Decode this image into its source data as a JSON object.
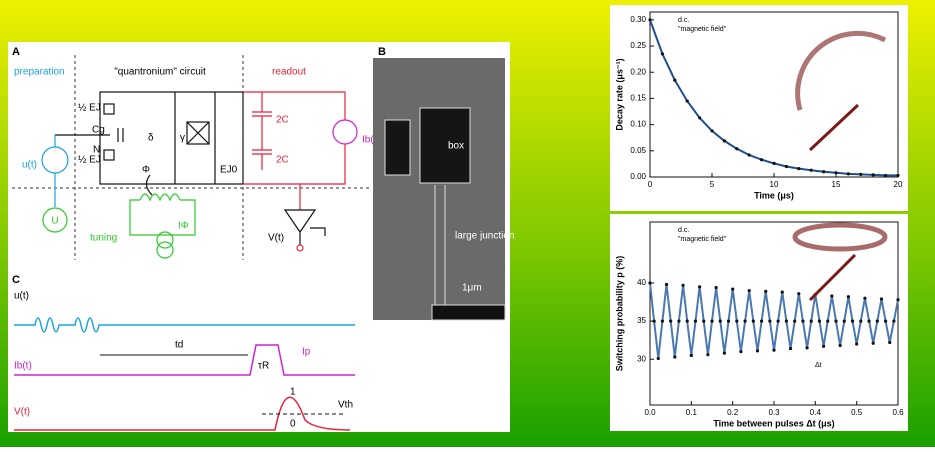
{
  "figure": {
    "panel_a": {
      "label": "A",
      "preparation": "preparation",
      "circuit": "\"quantronium\" circuit",
      "readout": "readout",
      "cg": "Cg",
      "n": "N",
      "ej_top": "½ EJ",
      "ej_bottom": "½ EJ",
      "delta": "δ",
      "gamma": "γ",
      "phi": "Φ",
      "ej0": "EJ0",
      "cap_top": "2C",
      "cap_bottom": "2C",
      "ib": "Ib(t)",
      "u": "u(t)",
      "u_source": "U",
      "tuning": "tuning",
      "iphi": "IΦ",
      "v": "V(t)"
    },
    "panel_b": {
      "label": "B",
      "box": "box",
      "junction": "large junction",
      "scale": "1μm"
    },
    "panel_c": {
      "label": "C",
      "u": "u(t)",
      "ib": "Ib(t)",
      "v": "V(t)",
      "td": "td",
      "tau": "τR",
      "ip": "Ip",
      "vth": "Vth",
      "one": "1",
      "zero": "0"
    }
  },
  "chart_data": [
    {
      "type": "line",
      "x_label": "Time (μs)",
      "y_label": "Decay rate (μs⁻¹)",
      "annotation": "d.c.",
      "annotation2": "\"magnetic field\"",
      "x": [
        0,
        1,
        2,
        3,
        4,
        5,
        6,
        7,
        8,
        9,
        10,
        11,
        12,
        13,
        14,
        15,
        16,
        17,
        18,
        19,
        20
      ],
      "series": [
        {
          "color": "#1f4f8f",
          "values": [
            0.3,
            0.235,
            0.185,
            0.145,
            0.113,
            0.088,
            0.069,
            0.054,
            0.042,
            0.033,
            0.026,
            0.02,
            0.016,
            0.013,
            0.01,
            0.008,
            0.006,
            0.005,
            0.004,
            0.003,
            0.003
          ]
        }
      ],
      "xlim": [
        0,
        20
      ],
      "xticks": [
        0,
        5,
        10,
        15,
        20
      ],
      "ylim": [
        0,
        0.315
      ],
      "yticks": [
        {
          "value": 0,
          "label": "0.00"
        },
        {
          "value": 0.05,
          "label": "0.05"
        },
        {
          "value": 0.1,
          "label": "0.10"
        },
        {
          "value": 0.15,
          "label": "0.15"
        },
        {
          "value": 0.2,
          "label": "0.20"
        },
        {
          "value": 0.25,
          "label": "0.25"
        },
        {
          "value": 0.3,
          "label": "0.30"
        }
      ]
    },
    {
      "type": "line",
      "x_label": "Time between pulses Δt (μs)",
      "y_label": "Switching probability p (%)",
      "annotation": "d.c.",
      "annotation2": "\"magnetic field\"",
      "annotation3": "Δt",
      "x": [
        0,
        0.01,
        0.02,
        0.03,
        0.04,
        0.05,
        0.06,
        0.07,
        0.08,
        0.09,
        0.1,
        0.11,
        0.12,
        0.13,
        0.14,
        0.15,
        0.16,
        0.17,
        0.18,
        0.19,
        0.2,
        0.21,
        0.22,
        0.23,
        0.24,
        0.25,
        0.26,
        0.27,
        0.28,
        0.29,
        0.3,
        0.31,
        0.32,
        0.33,
        0.34,
        0.35,
        0.36,
        0.37,
        0.38,
        0.39,
        0.4,
        0.41,
        0.42,
        0.43,
        0.44,
        0.45,
        0.46,
        0.47,
        0.48,
        0.49,
        0.5,
        0.51,
        0.52,
        0.53,
        0.54,
        0.55,
        0.56,
        0.57,
        0.58,
        0.59,
        0.6
      ],
      "series": [
        {
          "color": "#4a78b0",
          "values": [
            40,
            35,
            30.1,
            35,
            39.8,
            35,
            30.3,
            35,
            39.7,
            35,
            30.5,
            35,
            39.5,
            35,
            30.6,
            35,
            39.4,
            35,
            30.8,
            35,
            39.2,
            35,
            31,
            35,
            39,
            35,
            31.1,
            35,
            38.9,
            35,
            31.2,
            35,
            38.8,
            35,
            31.4,
            35,
            38.6,
            35,
            31.5,
            35,
            38.5,
            35,
            31.7,
            35,
            38.3,
            35,
            31.8,
            35,
            38.2,
            35,
            32,
            35,
            38,
            35,
            32.1,
            35,
            37.9,
            35,
            32.2,
            35,
            37.8
          ]
        }
      ],
      "xlim": [
        0,
        0.6
      ],
      "xticks": [
        {
          "value": 0,
          "label": "0.0"
        },
        0.1,
        0.2,
        0.3,
        0.4,
        0.5,
        0.6
      ],
      "ylim": [
        24,
        48
      ],
      "yticks": [
        30,
        35,
        40
      ]
    }
  ]
}
